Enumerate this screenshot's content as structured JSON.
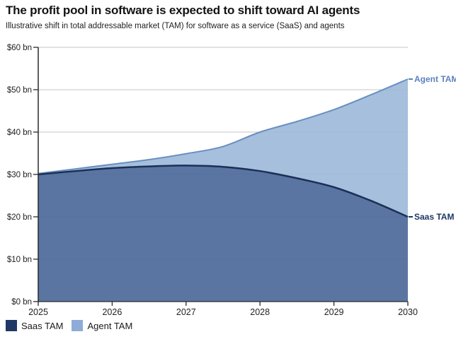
{
  "header": {
    "title": "The profit pool in software is expected to shift toward AI agents",
    "subtitle": "Illustrative shift in total addressable market (TAM) for software as a service (SaaS) and agents"
  },
  "chart_data": {
    "type": "area",
    "stacked": true,
    "title": "The profit pool in software is expected to shift toward AI agents",
    "subtitle": "Illustrative shift in total addressable market (TAM) for software as a service (SaaS) and agents",
    "x": [
      2025,
      2025.5,
      2026,
      2026.5,
      2027,
      2027.5,
      2028,
      2028.5,
      2029,
      2029.5,
      2030
    ],
    "series": [
      {
        "name": "Saas TAM",
        "values": [
          30.0,
          30.8,
          31.5,
          31.9,
          32.1,
          31.8,
          30.8,
          29.1,
          27.0,
          23.8,
          20.0
        ],
        "fill": "#4d6b9a",
        "line": "#1b3057",
        "legend_swatch": "#1f3864",
        "label_color": "#1f3864"
      },
      {
        "name": "Agent TAM",
        "values": [
          0.2,
          0.5,
          0.9,
          1.6,
          2.8,
          4.8,
          9.2,
          13.4,
          18.3,
          25.0,
          32.5
        ],
        "fill": "#9fbad9",
        "line": "#688fc2",
        "legend_swatch": "#8fabd8",
        "label_color": "#5b82c0"
      }
    ],
    "ylim": [
      0,
      60
    ],
    "xlim": [
      2025,
      2030
    ],
    "grid": true,
    "y_ticks": [
      {
        "value": 0,
        "label": "$0 bn"
      },
      {
        "value": 10,
        "label": "$10 bn"
      },
      {
        "value": 20,
        "label": "$20 bn"
      },
      {
        "value": 30,
        "label": "$30 bn"
      },
      {
        "value": 40,
        "label": "$40 bn"
      },
      {
        "value": 50,
        "label": "$50 bn"
      },
      {
        "value": 60,
        "label": "$60 bn"
      }
    ],
    "x_ticks": [
      {
        "value": 2025,
        "label": "2025"
      },
      {
        "value": 2026,
        "label": "2026"
      },
      {
        "value": 2027,
        "label": "2027"
      },
      {
        "value": 2028,
        "label": "2028"
      },
      {
        "value": 2029,
        "label": "2029"
      },
      {
        "value": 2030,
        "label": "2030"
      }
    ],
    "colors": {
      "gridline": "#c4c4c4",
      "axis": "#2a2a2a",
      "tick_label": "#222222"
    }
  }
}
